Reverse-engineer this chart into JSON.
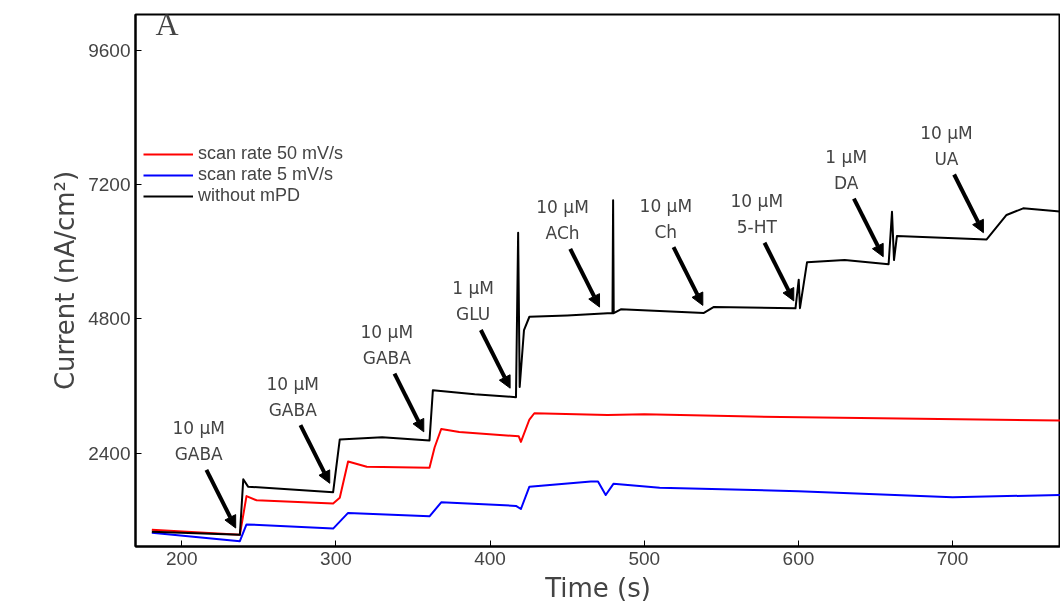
{
  "chart_data": {
    "type": "line",
    "xlabel": "Time (s)",
    "ylabel": "Current (nA/cm²)",
    "xlim": [
      170,
      770
    ],
    "ylim": [
      730,
      10240
    ],
    "xticks": [
      200,
      300,
      400,
      500,
      600,
      700
    ],
    "yticks": [
      2400,
      4800,
      7200,
      9600
    ],
    "grid": false,
    "legend": "top left",
    "marker": "none",
    "line_style": "solid",
    "series": [
      {
        "name": "scan rate 50 mV/s",
        "color": "#ff0000",
        "x": [
          180.6,
          237.7,
          242,
          248.5,
          298.2,
          302.5,
          307.9,
          320,
          360.7,
          364,
          368.3,
          380,
          418.6,
          420,
          425.5,
          428.7,
          476.2,
          500,
          589,
          769.6
        ],
        "values": [
          1031,
          938,
          1631,
          1556,
          1500,
          1600,
          2250,
          2156,
          2137,
          2500,
          2831,
          2775,
          2700,
          2600,
          3000,
          3112,
          3081,
          3094,
          3044,
          2981
        ]
      },
      {
        "name": "scan rate 5 mV/s",
        "color": "#0000ff",
        "x": [
          180.6,
          237.7,
          242,
          298.2,
          307.9,
          360.7,
          368.3,
          416.8,
          420,
          425.5,
          465.4,
          470,
          475,
          480,
          510,
          600,
          700,
          769.6
        ],
        "values": [
          975,
          825,
          1125,
          1050,
          1331,
          1269,
          1519,
          1456,
          1400,
          1800,
          1894,
          1894,
          1650,
          1850,
          1781,
          1719,
          1612,
          1650
        ]
      },
      {
        "name": "without mPD",
        "color": "#000000",
        "x": [
          180.6,
          237.7,
          239.9,
          243,
          298.2,
          302.5,
          330,
          360.7,
          362.9,
          390,
          416.8,
          418.2,
          419.2,
          422,
          425.5,
          450,
          476.2,
          479.4,
          479.8,
          480.2,
          484.8,
          538.7,
          545.2,
          598.1,
          600.2,
          601,
          605.6,
          630,
          658.5,
          660.7,
          662,
          663.9,
          722.1,
          735,
          745.8,
          769.6
        ],
        "values": [
          994,
          938,
          1931,
          1800,
          1700,
          2644,
          2681,
          2625,
          3525,
          3450,
          3400,
          6337,
          3581,
          4600,
          4837,
          4860,
          4900,
          4900,
          6919,
          4900,
          4969,
          4906,
          5012,
          4988,
          5500,
          4990,
          5812,
          5850,
          5775,
          6712,
          5850,
          6281,
          6219,
          6656,
          6775,
          6719
        ]
      }
    ],
    "annotations": [
      "A",
      {
        "text": "10 µM\nGABA",
        "x": 235,
        "y": 1000
      },
      {
        "text": "10 µM\nGABA",
        "x": 296,
        "y": 1800
      },
      {
        "text": "10 µM\nGABA",
        "x": 357,
        "y": 2720
      },
      {
        "text": "1 µM\nGLU",
        "x": 413,
        "y": 3500
      },
      {
        "text": "10 µM\nACh",
        "x": 471,
        "y": 4950
      },
      {
        "text": "10 µM\nCh",
        "x": 538,
        "y": 4980
      },
      {
        "text": "10 µM\n5-HT",
        "x": 597,
        "y": 5060
      },
      {
        "text": "1 µM\nDA",
        "x": 655,
        "y": 5850
      },
      {
        "text": "10 µM\nUA",
        "x": 720,
        "y": 6280
      }
    ]
  }
}
